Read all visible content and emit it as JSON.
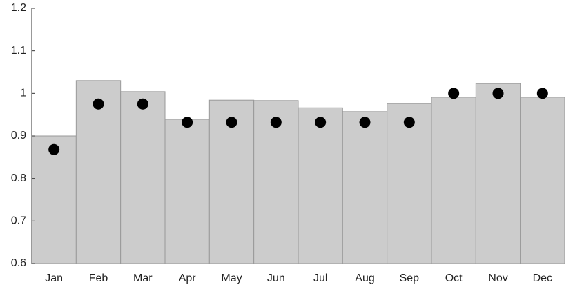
{
  "chart_data": {
    "type": "bar",
    "categories": [
      "Jan",
      "Feb",
      "Mar",
      "Apr",
      "May",
      "Jun",
      "Jul",
      "Aug",
      "Sep",
      "Oct",
      "Nov",
      "Dec"
    ],
    "series": [
      {
        "kind": "bar",
        "color": "#cccccc",
        "edge": "#999999",
        "values": [
          0.9,
          1.03,
          1.004,
          0.939,
          0.984,
          0.983,
          0.966,
          0.957,
          0.976,
          0.991,
          1.023,
          0.991
        ]
      },
      {
        "kind": "dot",
        "color": "#000000",
        "values": [
          0.868,
          0.975,
          0.975,
          0.932,
          0.932,
          0.932,
          0.932,
          0.932,
          0.932,
          1.0,
          1.0,
          1.0
        ]
      }
    ],
    "ylim": [
      0.6,
      1.2
    ],
    "yticks": [
      0.6,
      0.7,
      0.8,
      0.9,
      1,
      1.1,
      1.2
    ],
    "grid": false
  }
}
